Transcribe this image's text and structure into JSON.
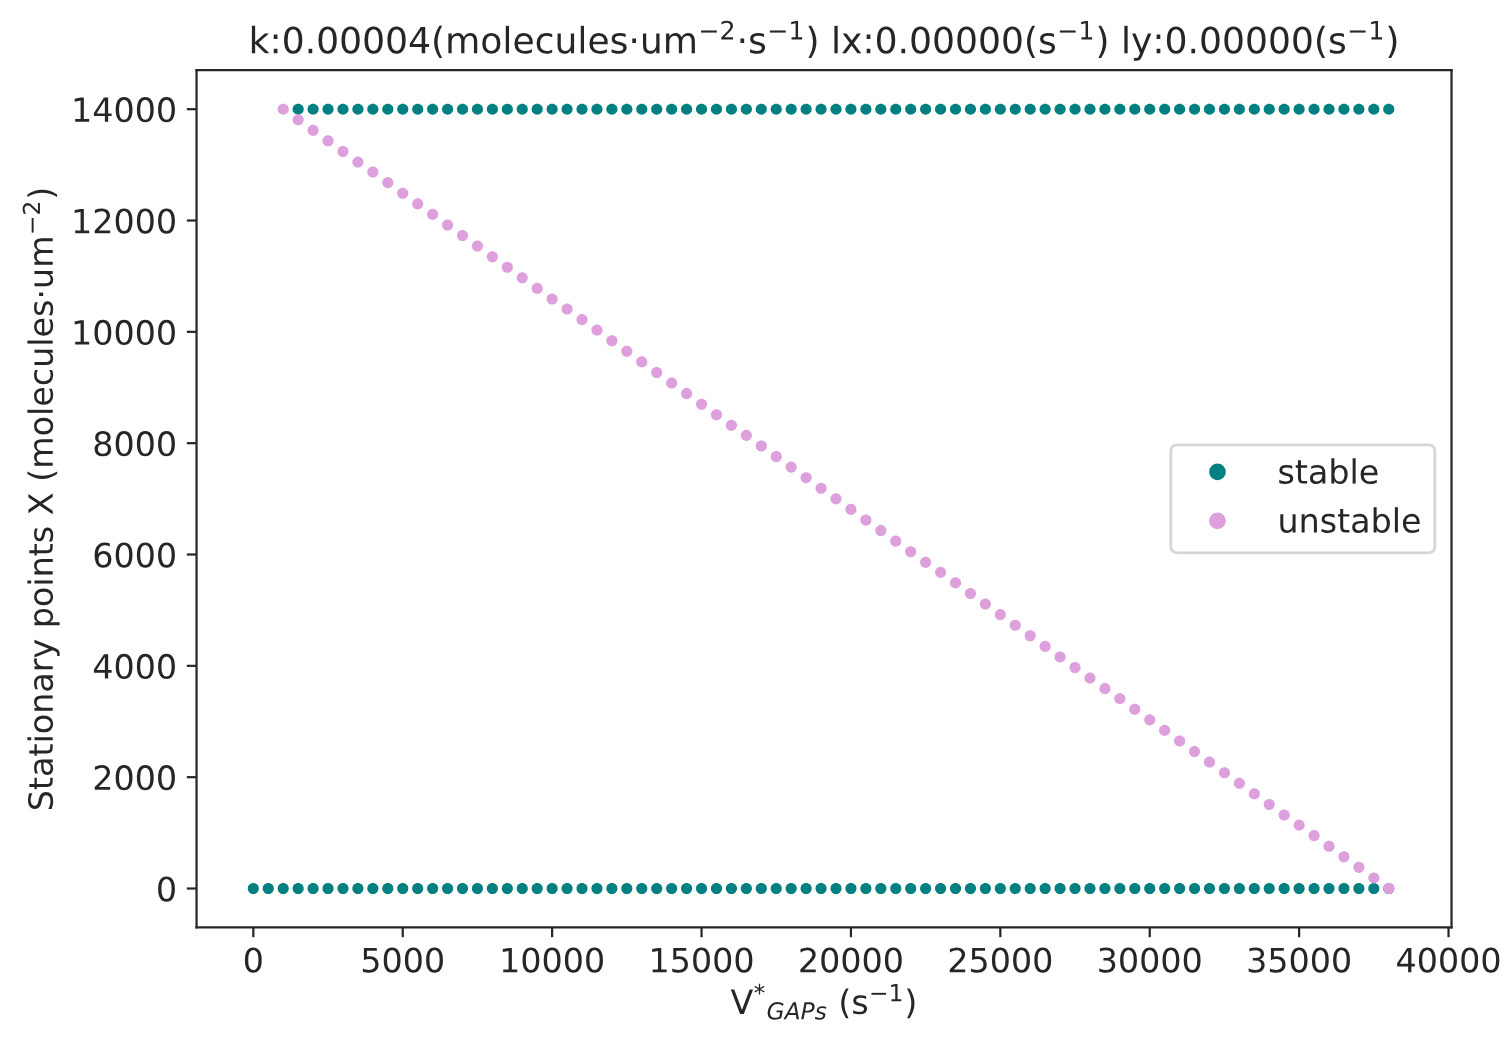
{
  "chart_data": {
    "type": "scatter",
    "title": "k:0.00004(molecules·um$^{−2}$·s$^{−1}$) lx:0.00000(s$^{−1}$) ly:0.00000(s$^{−1}$)",
    "xlabel": "V$^{*}$$_{GAPs}$ (s$^{−1}$)",
    "ylabel": "Stationary points X (molecules·um$^{−2}$)",
    "xlim": [
      -1900,
      40100
    ],
    "ylim": [
      -700,
      14700
    ],
    "xticks": [
      0,
      5000,
      10000,
      15000,
      20000,
      25000,
      30000,
      35000,
      40000
    ],
    "yticks": [
      0,
      2000,
      4000,
      6000,
      8000,
      10000,
      12000,
      14000
    ],
    "grid": false,
    "legend": "right",
    "marker": "circle",
    "series": [
      {
        "name": "stable",
        "color": "#008080",
        "x": [
          0,
          500,
          1000,
          1500,
          2000,
          2500,
          3000,
          3500,
          4000,
          4500,
          5000,
          5500,
          6000,
          6500,
          7000,
          7500,
          8000,
          8500,
          9000,
          9500,
          10000,
          10500,
          11000,
          11500,
          12000,
          12500,
          13000,
          13500,
          14000,
          14500,
          15000,
          15500,
          16000,
          16500,
          17000,
          17500,
          18000,
          18500,
          19000,
          19500,
          20000,
          20500,
          21000,
          21500,
          22000,
          22500,
          23000,
          23500,
          24000,
          24500,
          25000,
          25500,
          26000,
          26500,
          27000,
          27500,
          28000,
          28500,
          29000,
          29500,
          30000,
          30500,
          31000,
          31500,
          32000,
          32500,
          33000,
          33500,
          34000,
          34500,
          35000,
          35500,
          36000,
          36500,
          37000,
          37500,
          38000,
          1500,
          2000,
          2500,
          3000,
          3500,
          4000,
          4500,
          5000,
          5500,
          6000,
          6500,
          7000,
          7500,
          8000,
          8500,
          9000,
          9500,
          10000,
          10500,
          11000,
          11500,
          12000,
          12500,
          13000,
          13500,
          14000,
          14500,
          15000,
          15500,
          16000,
          16500,
          17000,
          17500,
          18000,
          18500,
          19000,
          19500,
          20000,
          20500,
          21000,
          21500,
          22000,
          22500,
          23000,
          23500,
          24000,
          24500,
          25000,
          25500,
          26000,
          26500,
          27000,
          27500,
          28000,
          28500,
          29000,
          29500,
          30000,
          30500,
          31000,
          31500,
          32000,
          32500,
          33000,
          33500,
          34000,
          34500,
          35000,
          35500,
          36000,
          36500,
          37000,
          37500,
          38000
        ],
        "values": [
          0,
          0,
          0,
          0,
          0,
          0,
          0,
          0,
          0,
          0,
          0,
          0,
          0,
          0,
          0,
          0,
          0,
          0,
          0,
          0,
          0,
          0,
          0,
          0,
          0,
          0,
          0,
          0,
          0,
          0,
          0,
          0,
          0,
          0,
          0,
          0,
          0,
          0,
          0,
          0,
          0,
          0,
          0,
          0,
          0,
          0,
          0,
          0,
          0,
          0,
          0,
          0,
          0,
          0,
          0,
          0,
          0,
          0,
          0,
          0,
          0,
          0,
          0,
          0,
          0,
          0,
          0,
          0,
          0,
          0,
          0,
          0,
          0,
          0,
          0,
          0,
          0,
          14000,
          14000,
          14000,
          14000,
          14000,
          14000,
          14000,
          14000,
          14000,
          14000,
          14000,
          14000,
          14000,
          14000,
          14000,
          14000,
          14000,
          14000,
          14000,
          14000,
          14000,
          14000,
          14000,
          14000,
          14000,
          14000,
          14000,
          14000,
          14000,
          14000,
          14000,
          14000,
          14000,
          14000,
          14000,
          14000,
          14000,
          14000,
          14000,
          14000,
          14000,
          14000,
          14000,
          14000,
          14000,
          14000,
          14000,
          14000,
          14000,
          14000,
          14000,
          14000,
          14000,
          14000,
          14000,
          14000,
          14000,
          14000,
          14000,
          14000,
          14000,
          14000,
          14000,
          14000,
          14000,
          14000,
          14000,
          14000,
          14000,
          14000,
          14000,
          14000,
          14000,
          14000
        ]
      },
      {
        "name": "unstable",
        "color": "#dda0dd",
        "x": [
          1000,
          1500,
          2000,
          2500,
          3000,
          3500,
          4000,
          4500,
          5000,
          5500,
          6000,
          6500,
          7000,
          7500,
          8000,
          8500,
          9000,
          9500,
          10000,
          10500,
          11000,
          11500,
          12000,
          12500,
          13000,
          13500,
          14000,
          14500,
          15000,
          15500,
          16000,
          16500,
          17000,
          17500,
          18000,
          18500,
          19000,
          19500,
          20000,
          20500,
          21000,
          21500,
          22000,
          22500,
          23000,
          23500,
          24000,
          24500,
          25000,
          25500,
          26000,
          26500,
          27000,
          27500,
          28000,
          28500,
          29000,
          29500,
          30000,
          30500,
          31000,
          31500,
          32000,
          32500,
          33000,
          33500,
          34000,
          34500,
          35000,
          35500,
          36000,
          36500,
          37000,
          37500,
          38000
        ],
        "values": [
          14000,
          13810,
          13620,
          13430,
          13240,
          13050,
          12870,
          12680,
          12490,
          12300,
          12110,
          11920,
          11730,
          11540,
          11350,
          11160,
          10970,
          10780,
          10590,
          10410,
          10220,
          10030,
          9840,
          9650,
          9460,
          9270,
          9080,
          8890,
          8700,
          8510,
          8320,
          8140,
          7950,
          7760,
          7570,
          7380,
          7190,
          7000,
          6810,
          6620,
          6430,
          6240,
          6050,
          5860,
          5680,
          5490,
          5300,
          5110,
          4920,
          4730,
          4540,
          4350,
          4160,
          3970,
          3780,
          3590,
          3410,
          3220,
          3030,
          2840,
          2650,
          2460,
          2270,
          2080,
          1890,
          1700,
          1510,
          1320,
          1140,
          950,
          760,
          570,
          380,
          190,
          0
        ]
      }
    ]
  }
}
